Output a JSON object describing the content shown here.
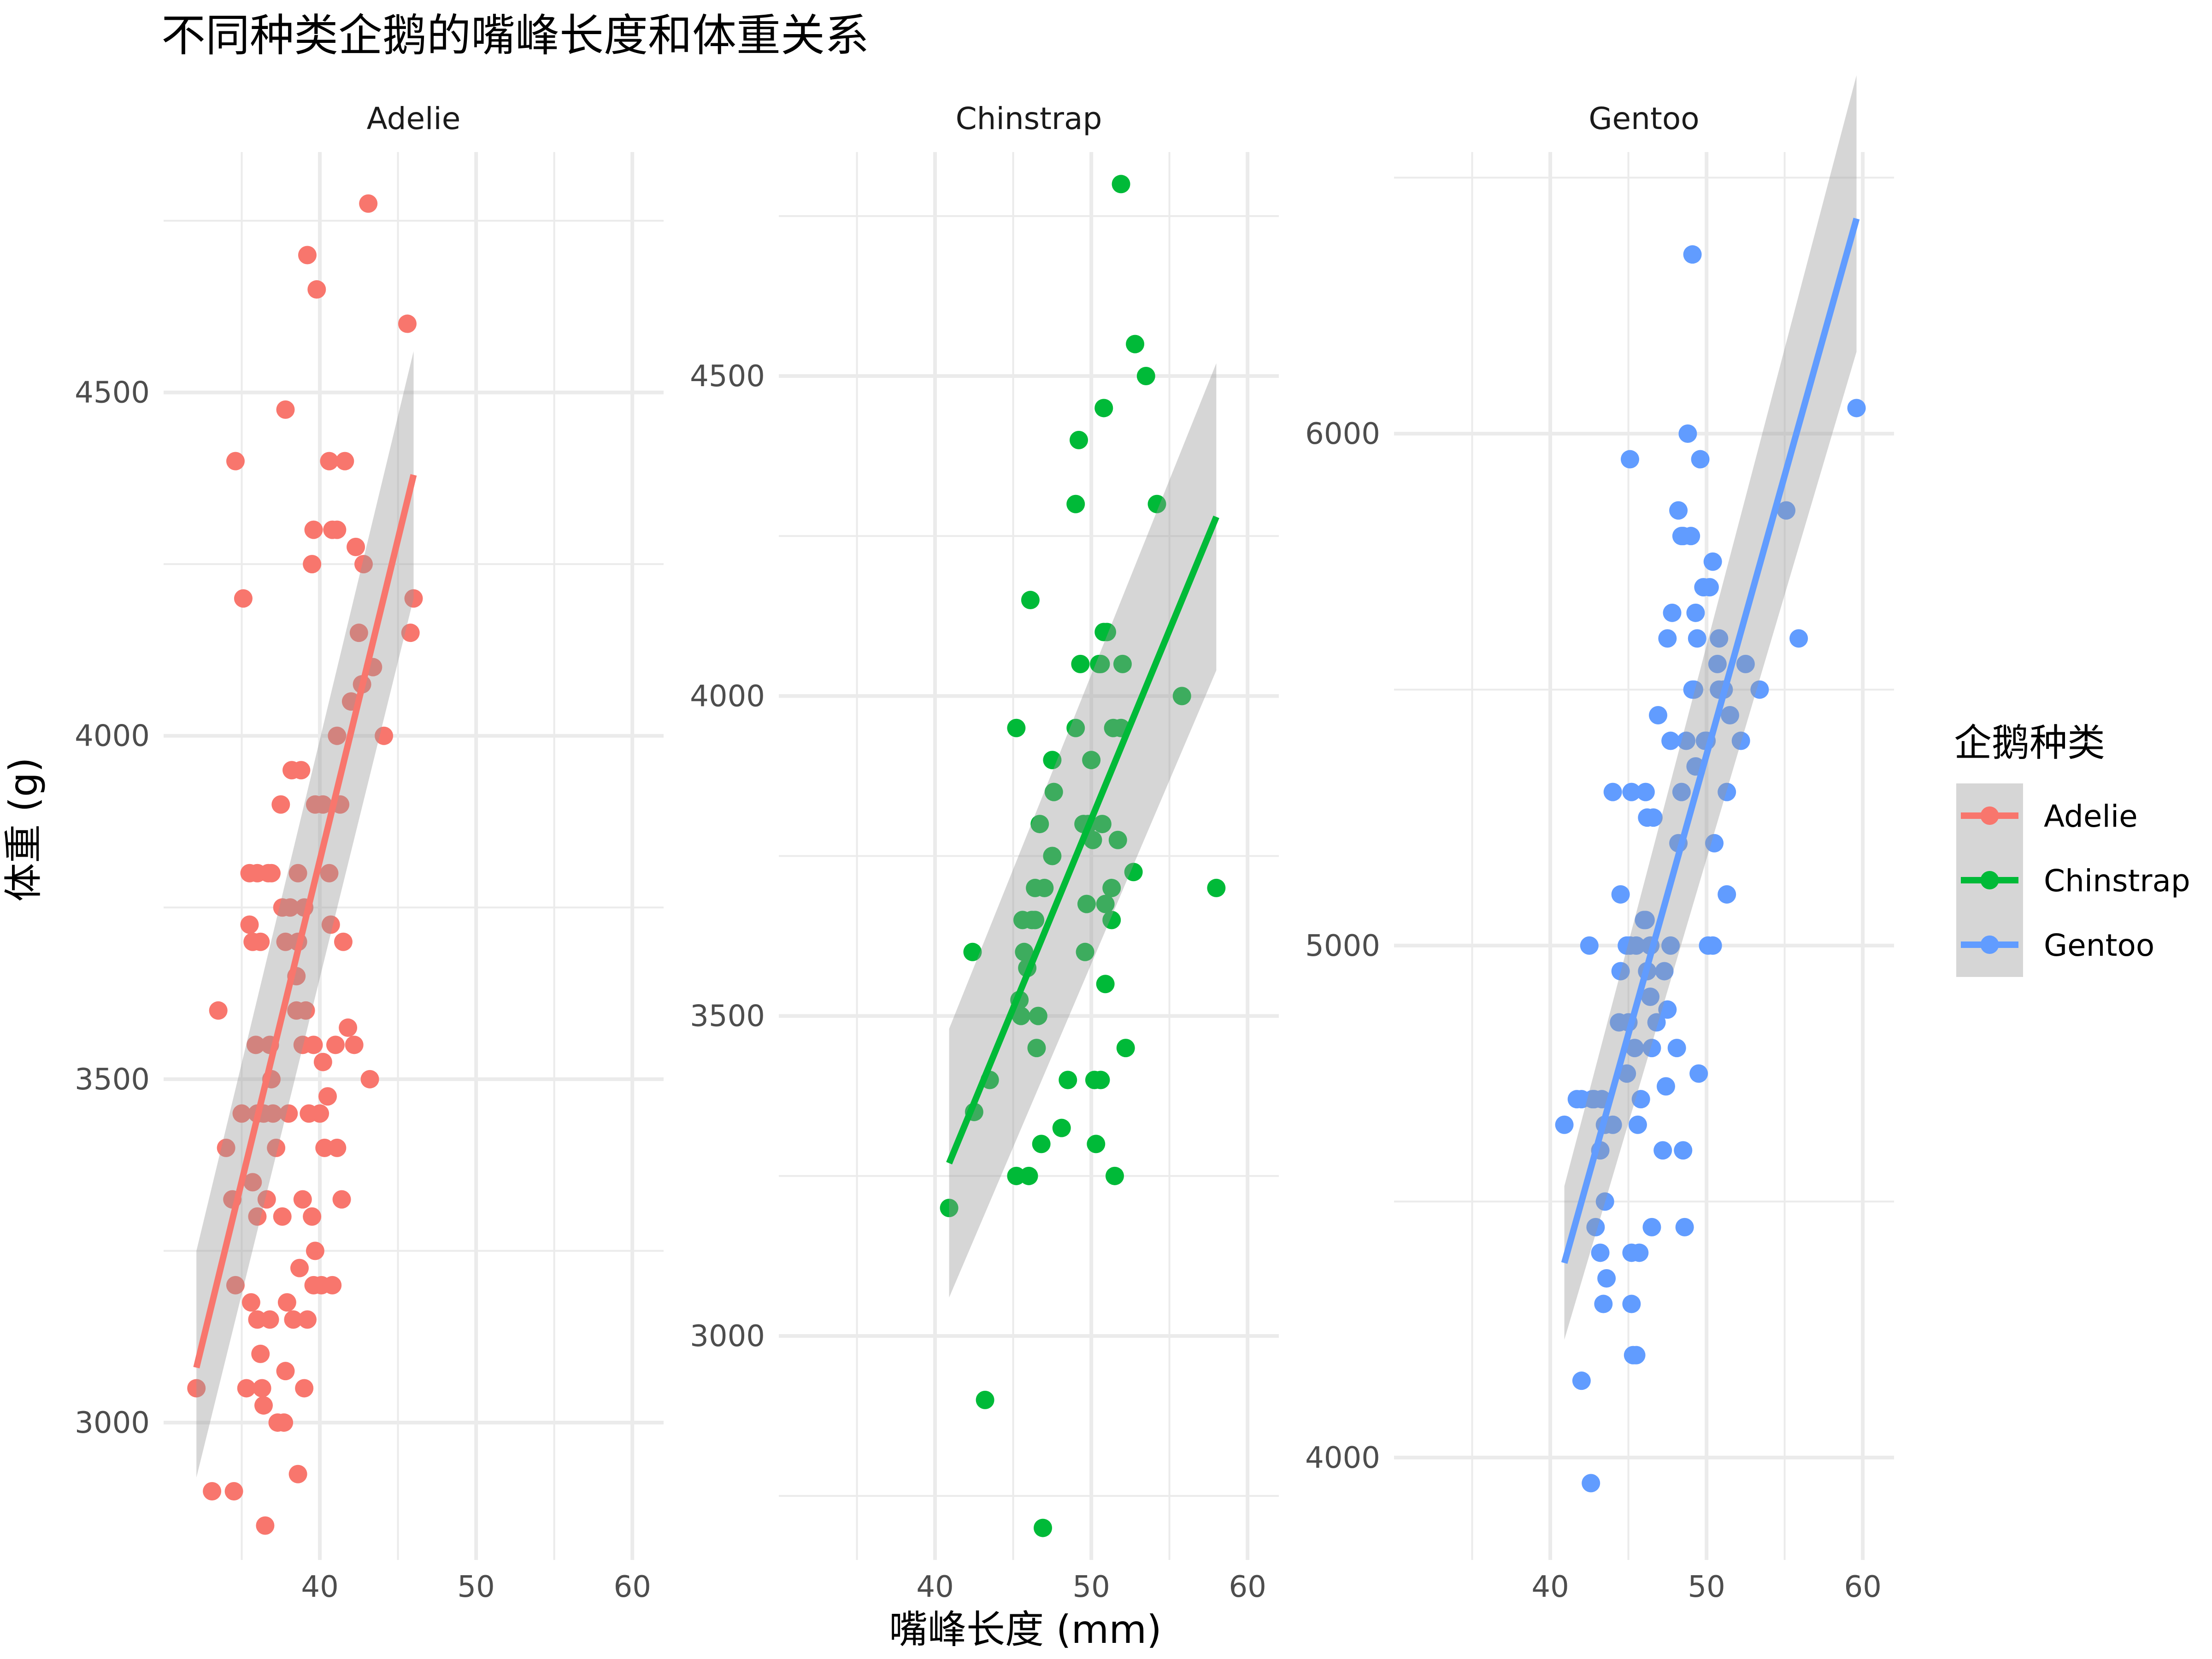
{
  "chart_data": {
    "type": "scatter",
    "title": "不同种类企鹅的嘴峰长度和体重关系",
    "xlabel": "嘴峰长度 (mm)",
    "ylabel": "体重 (g)",
    "legend": {
      "title": "企鹅种类",
      "placement": "right",
      "entries": [
        "Adelie",
        "Chinstrap",
        "Gentoo"
      ]
    },
    "grid": true,
    "xlim": [
      30,
      62
    ],
    "x_ticks": [
      "40",
      "50",
      "60"
    ],
    "panels": [
      {
        "name": "Adelie",
        "color": "#F8766D",
        "ylim": [
          2800,
          4850
        ],
        "y_ticks": [
          3000,
          3500,
          4000,
          4500
        ],
        "fit": {
          "x": [
            32.1,
            46.0
          ],
          "y": [
            3080,
            4380
          ],
          "ci_lower": [
            2920,
            4200
          ],
          "ci_upper": [
            3250,
            4560
          ]
        },
        "points": [
          [
            32.1,
            3050
          ],
          [
            33.1,
            2900
          ],
          [
            33.5,
            3600
          ],
          [
            34.0,
            3400
          ],
          [
            34.4,
            3325
          ],
          [
            34.5,
            2900
          ],
          [
            34.6,
            4400
          ],
          [
            34.6,
            3200
          ],
          [
            35.0,
            3450
          ],
          [
            35.1,
            4200
          ],
          [
            35.3,
            3050
          ],
          [
            35.5,
            3800
          ],
          [
            35.5,
            3725
          ],
          [
            35.6,
            3175
          ],
          [
            35.7,
            3350
          ],
          [
            35.9,
            3550
          ],
          [
            36.0,
            3800
          ],
          [
            36.0,
            3450
          ],
          [
            36.0,
            3150
          ],
          [
            36.2,
            3100
          ],
          [
            36.2,
            3700
          ],
          [
            36.3,
            3050
          ],
          [
            36.4,
            3450
          ],
          [
            36.4,
            3025
          ],
          [
            36.5,
            2850
          ],
          [
            36.6,
            3325
          ],
          [
            36.7,
            3800
          ],
          [
            36.8,
            3550
          ],
          [
            36.8,
            3150
          ],
          [
            36.9,
            3500
          ],
          [
            37.0,
            3450
          ],
          [
            37.2,
            3400
          ],
          [
            37.3,
            3000
          ],
          [
            37.5,
            3900
          ],
          [
            37.6,
            3750
          ],
          [
            37.7,
            3000
          ],
          [
            37.8,
            4475
          ],
          [
            37.8,
            3075
          ],
          [
            38.0,
            3450
          ],
          [
            38.1,
            3750
          ],
          [
            38.2,
            3950
          ],
          [
            38.3,
            3150
          ],
          [
            38.5,
            3600
          ],
          [
            38.6,
            2925
          ],
          [
            38.6,
            3800
          ],
          [
            38.8,
            3950
          ],
          [
            38.9,
            3325
          ],
          [
            39.0,
            3750
          ],
          [
            39.1,
            3600
          ],
          [
            39.2,
            4700
          ],
          [
            39.2,
            3150
          ],
          [
            39.3,
            3450
          ],
          [
            39.5,
            4250
          ],
          [
            39.6,
            3550
          ],
          [
            39.7,
            3900
          ],
          [
            39.8,
            4650
          ],
          [
            40.0,
            3450
          ],
          [
            40.2,
            3900
          ],
          [
            40.3,
            3400
          ],
          [
            40.5,
            3475
          ],
          [
            40.6,
            4400
          ],
          [
            40.7,
            3725
          ],
          [
            40.8,
            4300
          ],
          [
            41.0,
            3550
          ],
          [
            41.1,
            3400
          ],
          [
            41.3,
            3900
          ],
          [
            41.4,
            3325
          ],
          [
            41.5,
            3700
          ],
          [
            41.6,
            4400
          ],
          [
            42.0,
            4050
          ],
          [
            42.2,
            3550
          ],
          [
            42.3,
            4275
          ],
          [
            42.5,
            4150
          ],
          [
            42.7,
            4075
          ],
          [
            42.8,
            4250
          ],
          [
            43.1,
            4775
          ],
          [
            43.2,
            3500
          ],
          [
            43.4,
            4100
          ],
          [
            44.1,
            4000
          ],
          [
            45.6,
            4600
          ],
          [
            45.8,
            4150
          ],
          [
            46.0,
            4200
          ],
          [
            36.0,
            3300
          ],
          [
            37.9,
            3175
          ],
          [
            38.7,
            3225
          ],
          [
            39.6,
            3200
          ],
          [
            40.1,
            3200
          ],
          [
            40.8,
            3200
          ],
          [
            38.5,
            3650
          ],
          [
            38.9,
            3550
          ],
          [
            39.5,
            3300
          ],
          [
            40.6,
            3800
          ],
          [
            41.1,
            4000
          ],
          [
            41.8,
            3575
          ],
          [
            39.6,
            4300
          ],
          [
            41.1,
            4300
          ],
          [
            37.6,
            3300
          ],
          [
            38.6,
            3700
          ],
          [
            39.0,
            3050
          ],
          [
            39.7,
            3250
          ],
          [
            40.2,
            3525
          ],
          [
            35.7,
            3700
          ],
          [
            36.9,
            3800
          ],
          [
            37.8,
            3700
          ]
        ]
      },
      {
        "name": "Chinstrap",
        "color": "#00BA38",
        "ylim": [
          2650,
          4850
        ],
        "y_ticks": [
          3000,
          3500,
          4000,
          4500
        ],
        "fit": {
          "x": [
            40.9,
            58.0
          ],
          "y": [
            3270,
            4280
          ],
          "ci_lower": [
            3060,
            4040
          ],
          "ci_upper": [
            3480,
            4520
          ]
        },
        "points": [
          [
            40.9,
            3200
          ],
          [
            42.4,
            3600
          ],
          [
            42.5,
            3350
          ],
          [
            43.2,
            2900
          ],
          [
            43.5,
            3400
          ],
          [
            45.2,
            3950
          ],
          [
            45.2,
            3250
          ],
          [
            45.4,
            3525
          ],
          [
            45.5,
            3500
          ],
          [
            45.6,
            3650
          ],
          [
            45.7,
            3600
          ],
          [
            45.9,
            3575
          ],
          [
            46.0,
            3250
          ],
          [
            46.1,
            4150
          ],
          [
            46.2,
            3650
          ],
          [
            46.4,
            3700
          ],
          [
            46.5,
            3450
          ],
          [
            46.6,
            3500
          ],
          [
            46.7,
            3800
          ],
          [
            46.8,
            3300
          ],
          [
            46.9,
            2700
          ],
          [
            47.0,
            3700
          ],
          [
            47.5,
            3900
          ],
          [
            47.6,
            3850
          ],
          [
            48.1,
            3325
          ],
          [
            48.5,
            3400
          ],
          [
            49.0,
            3950
          ],
          [
            49.0,
            4300
          ],
          [
            49.2,
            4400
          ],
          [
            49.3,
            4050
          ],
          [
            49.5,
            3800
          ],
          [
            49.6,
            3600
          ],
          [
            49.7,
            3675
          ],
          [
            50.0,
            3900
          ],
          [
            50.1,
            3775
          ],
          [
            50.2,
            3400
          ],
          [
            50.3,
            3300
          ],
          [
            50.5,
            4050
          ],
          [
            50.6,
            3400
          ],
          [
            50.7,
            3800
          ],
          [
            50.8,
            4450
          ],
          [
            50.9,
            3675
          ],
          [
            51.0,
            4100
          ],
          [
            51.3,
            3650
          ],
          [
            51.4,
            3950
          ],
          [
            51.5,
            3250
          ],
          [
            51.7,
            3775
          ],
          [
            51.9,
            4800
          ],
          [
            52.0,
            4050
          ],
          [
            52.2,
            3450
          ],
          [
            52.7,
            3725
          ],
          [
            52.8,
            4550
          ],
          [
            53.5,
            4500
          ],
          [
            54.2,
            4300
          ],
          [
            55.8,
            4000
          ],
          [
            58.0,
            3700
          ],
          [
            46.4,
            3650
          ],
          [
            47.5,
            3750
          ],
          [
            50.9,
            3550
          ],
          [
            50.8,
            4100
          ],
          [
            49.8,
            3800
          ],
          [
            51.3,
            3700
          ],
          [
            51.9,
            3950
          ],
          [
            50.6,
            4050
          ]
        ]
      },
      {
        "name": "Gentoo",
        "color": "#619CFF",
        "ylim": [
          3800,
          6550
        ],
        "y_ticks": [
          4000,
          5000,
          6000
        ],
        "fit": {
          "x": [
            40.9,
            59.6
          ],
          "y": [
            4380,
            6420
          ],
          "ci_lower": [
            4230,
            6160
          ],
          "ci_upper": [
            4530,
            6700
          ]
        },
        "points": [
          [
            40.9,
            4650
          ],
          [
            41.7,
            4700
          ],
          [
            42.0,
            4150
          ],
          [
            42.5,
            5000
          ],
          [
            42.6,
            3950
          ],
          [
            42.7,
            4700
          ],
          [
            42.8,
            4700
          ],
          [
            42.9,
            4450
          ],
          [
            43.2,
            4600
          ],
          [
            43.2,
            4400
          ],
          [
            43.3,
            4700
          ],
          [
            43.4,
            4300
          ],
          [
            43.5,
            4650
          ],
          [
            43.6,
            4350
          ],
          [
            44.0,
            5300
          ],
          [
            44.4,
            4850
          ],
          [
            44.5,
            5100
          ],
          [
            44.9,
            5000
          ],
          [
            44.9,
            4750
          ],
          [
            45.1,
            5950
          ],
          [
            45.2,
            5300
          ],
          [
            45.2,
            4300
          ],
          [
            45.3,
            4200
          ],
          [
            45.4,
            4800
          ],
          [
            45.5,
            4200
          ],
          [
            45.5,
            5000
          ],
          [
            45.7,
            4400
          ],
          [
            45.8,
            4700
          ],
          [
            46.1,
            5300
          ],
          [
            46.2,
            4950
          ],
          [
            46.4,
            5000
          ],
          [
            46.5,
            4800
          ],
          [
            46.6,
            5250
          ],
          [
            46.8,
            4850
          ],
          [
            46.9,
            5450
          ],
          [
            47.2,
            4600
          ],
          [
            47.3,
            4950
          ],
          [
            47.4,
            4725
          ],
          [
            47.5,
            4875
          ],
          [
            47.7,
            5400
          ],
          [
            47.8,
            5650
          ],
          [
            48.1,
            4800
          ],
          [
            48.2,
            5850
          ],
          [
            48.4,
            5300
          ],
          [
            48.5,
            4600
          ],
          [
            48.6,
            4450
          ],
          [
            48.7,
            5400
          ],
          [
            48.8,
            6000
          ],
          [
            49.0,
            5800
          ],
          [
            49.1,
            6350
          ],
          [
            49.1,
            5500
          ],
          [
            49.3,
            5650
          ],
          [
            49.4,
            5600
          ],
          [
            49.5,
            4750
          ],
          [
            49.6,
            5950
          ],
          [
            49.8,
            5700
          ],
          [
            50.0,
            5400
          ],
          [
            50.1,
            5000
          ],
          [
            50.2,
            5700
          ],
          [
            50.4,
            5750
          ],
          [
            50.5,
            5200
          ],
          [
            50.7,
            5550
          ],
          [
            50.8,
            5600
          ],
          [
            51.1,
            5500
          ],
          [
            51.3,
            5300
          ],
          [
            51.5,
            5450
          ],
          [
            52.2,
            5400
          ],
          [
            52.5,
            5550
          ],
          [
            53.4,
            5500
          ],
          [
            55.1,
            5850
          ],
          [
            55.9,
            5600
          ],
          [
            59.6,
            6050
          ],
          [
            42.0,
            4700
          ],
          [
            44.5,
            4950
          ],
          [
            45.1,
            5000
          ],
          [
            46.1,
            5050
          ],
          [
            46.2,
            5250
          ],
          [
            47.5,
            5600
          ],
          [
            48.4,
            5800
          ],
          [
            49.2,
            5500
          ],
          [
            50.4,
            5000
          ],
          [
            45.2,
            4400
          ],
          [
            46.5,
            4450
          ],
          [
            43.5,
            4500
          ],
          [
            48.5,
            5800
          ],
          [
            49.9,
            5400
          ],
          [
            50.8,
            5500
          ],
          [
            45.6,
            4650
          ],
          [
            46.4,
            4900
          ],
          [
            47.7,
            5000
          ],
          [
            48.2,
            5200
          ],
          [
            49.3,
            5350
          ],
          [
            51.3,
            5100
          ],
          [
            44.0,
            4650
          ],
          [
            45.0,
            4850
          ],
          [
            46.0,
            5050
          ]
        ]
      }
    ]
  }
}
